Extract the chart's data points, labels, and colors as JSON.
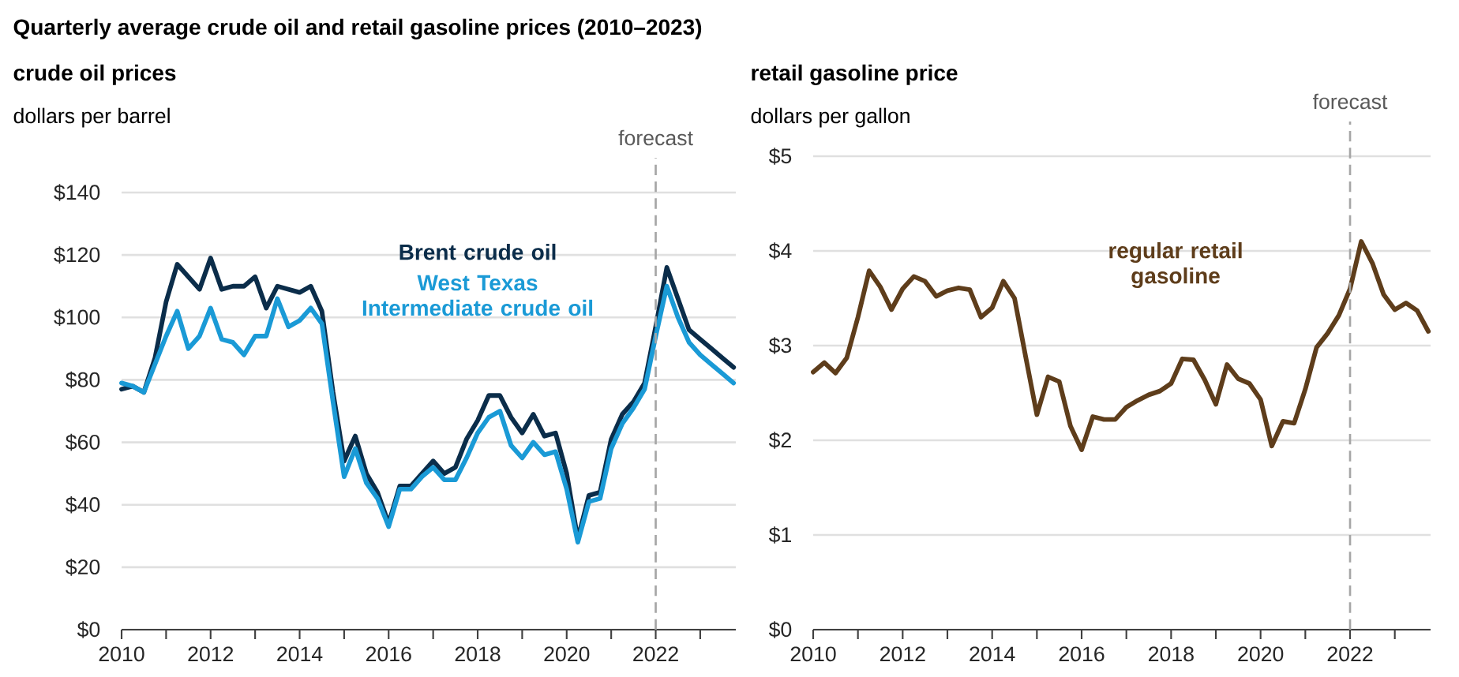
{
  "chart_data": [
    {
      "type": "line",
      "title": "Quarterly average crude oil and retail gasoline prices (2010–2023)",
      "subtitle": "crude oil prices",
      "ylabel": "dollars per barrel",
      "x": [
        2010,
        2010.25,
        2010.5,
        2010.75,
        2011,
        2011.25,
        2011.5,
        2011.75,
        2012,
        2012.25,
        2012.5,
        2012.75,
        2013,
        2013.25,
        2013.5,
        2013.75,
        2014,
        2014.25,
        2014.5,
        2014.75,
        2015,
        2015.25,
        2015.5,
        2015.75,
        2016,
        2016.25,
        2016.5,
        2016.75,
        2017,
        2017.25,
        2017.5,
        2017.75,
        2018,
        2018.25,
        2018.5,
        2018.75,
        2019,
        2019.25,
        2019.5,
        2019.75,
        2020,
        2020.25,
        2020.5,
        2020.75,
        2021,
        2021.25,
        2021.5,
        2021.75,
        2022,
        2022.25,
        2022.5,
        2022.75,
        2023,
        2023.25,
        2023.5,
        2023.75
      ],
      "series": [
        {
          "name": "Brent crude oil",
          "color": "#0b2d4a",
          "values": [
            77,
            78,
            76,
            87,
            105,
            117,
            113,
            109,
            119,
            109,
            110,
            110,
            113,
            103,
            110,
            109,
            108,
            110,
            102,
            76,
            54,
            62,
            50,
            44,
            34,
            46,
            46,
            50,
            54,
            50,
            52,
            61,
            67,
            75,
            75,
            68,
            63,
            69,
            62,
            63,
            50,
            29,
            43,
            44,
            61,
            69,
            73,
            79,
            97,
            116,
            106,
            96,
            93,
            90,
            87,
            84
          ]
        },
        {
          "name": "West Texas Intermediate crude oil",
          "color": "#1a9ad6",
          "values": [
            79,
            78,
            76,
            85,
            94,
            102,
            90,
            94,
            103,
            93,
            92,
            88,
            94,
            94,
            106,
            97,
            99,
            103,
            98,
            73,
            49,
            58,
            47,
            42,
            33,
            45,
            45,
            49,
            52,
            48,
            48,
            55,
            63,
            68,
            70,
            59,
            55,
            60,
            56,
            57,
            45,
            28,
            41,
            42,
            58,
            66,
            71,
            77,
            94,
            110,
            100,
            92,
            88,
            85,
            82,
            79
          ]
        }
      ],
      "xlim": [
        2010,
        2023.8
      ],
      "ylim": [
        0,
        140
      ],
      "xticks": [
        2010,
        {
          "value": 2011,
          "label": null
        },
        2012,
        {
          "value": 2013,
          "label": null
        },
        2014,
        {
          "value": 2015,
          "label": null
        },
        2016,
        {
          "value": 2017,
          "label": null
        },
        2018,
        {
          "value": 2019,
          "label": null
        },
        2020,
        {
          "value": 2021,
          "label": null
        },
        2022,
        {
          "value": 2023,
          "label": null
        }
      ],
      "yticks": [
        {
          "value": 0,
          "label": "$0"
        },
        {
          "value": 20,
          "label": "$20"
        },
        {
          "value": 40,
          "label": "$40"
        },
        {
          "value": 60,
          "label": "$60"
        },
        {
          "value": 80,
          "label": "$80"
        },
        {
          "value": 100,
          "label": "$100"
        },
        {
          "value": 120,
          "label": "$120"
        },
        {
          "value": 140,
          "label": "$140"
        }
      ],
      "grid": "y",
      "ref_lines": [
        {
          "axis": "x",
          "value": 2022,
          "label": "forecast",
          "color": "#a6a6a6",
          "line_style": "dashed"
        }
      ]
    },
    {
      "type": "line",
      "title": "retail gasoline price",
      "ylabel": "dollars per gallon",
      "x": [
        2010,
        2010.25,
        2010.5,
        2010.75,
        2011,
        2011.25,
        2011.5,
        2011.75,
        2012,
        2012.25,
        2012.5,
        2012.75,
        2013,
        2013.25,
        2013.5,
        2013.75,
        2014,
        2014.25,
        2014.5,
        2014.75,
        2015,
        2015.25,
        2015.5,
        2015.75,
        2016,
        2016.25,
        2016.5,
        2016.75,
        2017,
        2017.25,
        2017.5,
        2017.75,
        2018,
        2018.25,
        2018.5,
        2018.75,
        2019,
        2019.25,
        2019.5,
        2019.75,
        2020,
        2020.25,
        2020.5,
        2020.75,
        2021,
        2021.25,
        2021.5,
        2021.75,
        2022,
        2022.25,
        2022.5,
        2022.75,
        2023,
        2023.25,
        2023.5,
        2023.75
      ],
      "series": [
        {
          "name": "regular retail gasoline",
          "color": "#5e3d1b",
          "values": [
            2.72,
            2.82,
            2.71,
            2.87,
            3.3,
            3.79,
            3.62,
            3.38,
            3.6,
            3.73,
            3.68,
            3.52,
            3.58,
            3.61,
            3.59,
            3.3,
            3.4,
            3.68,
            3.5,
            2.88,
            2.27,
            2.67,
            2.62,
            2.15,
            1.9,
            2.25,
            2.22,
            2.22,
            2.35,
            2.42,
            2.48,
            2.52,
            2.6,
            2.86,
            2.85,
            2.64,
            2.38,
            2.8,
            2.65,
            2.6,
            2.43,
            1.94,
            2.2,
            2.18,
            2.54,
            2.98,
            3.13,
            3.32,
            3.6,
            4.1,
            3.87,
            3.54,
            3.38,
            3.45,
            3.37,
            3.15
          ]
        }
      ],
      "xlim": [
        2010,
        2023.8
      ],
      "ylim": [
        0,
        5
      ],
      "xticks": [
        2010,
        {
          "value": 2011,
          "label": null
        },
        2012,
        {
          "value": 2013,
          "label": null
        },
        2014,
        {
          "value": 2015,
          "label": null
        },
        2016,
        {
          "value": 2017,
          "label": null
        },
        2018,
        {
          "value": 2019,
          "label": null
        },
        2020,
        {
          "value": 2021,
          "label": null
        },
        2022,
        {
          "value": 2023,
          "label": null
        }
      ],
      "yticks": [
        {
          "value": 0,
          "label": "$0"
        },
        {
          "value": 1,
          "label": "$1"
        },
        {
          "value": 2,
          "label": "$2"
        },
        {
          "value": 3,
          "label": "$3"
        },
        {
          "value": 4,
          "label": "$4"
        },
        {
          "value": 5,
          "label": "$5"
        }
      ],
      "grid": "y",
      "ref_lines": [
        {
          "axis": "x",
          "value": 2022,
          "label": "forecast",
          "color": "#a6a6a6",
          "line_style": "dashed"
        }
      ]
    }
  ]
}
